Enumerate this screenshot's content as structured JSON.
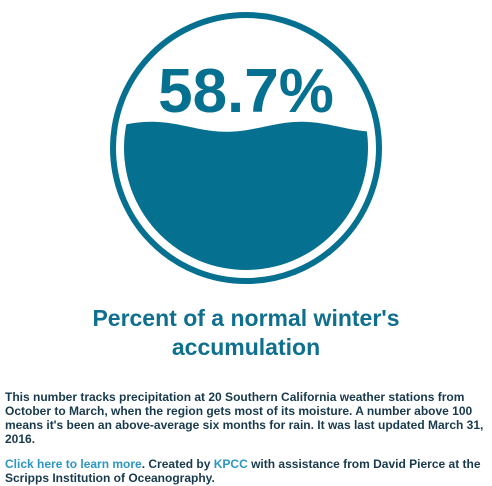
{
  "colors": {
    "accent": "#05708f",
    "link": "#2b96c4",
    "body_text": "#183a4c",
    "headline": "#0f6f8e"
  },
  "chart_data": {
    "type": "gauge",
    "value": 58.7,
    "range": [
      0,
      100
    ],
    "value_label": "58.7%"
  },
  "headline": {
    "line1": "Percent of a normal winter's",
    "line2": "accumulation"
  },
  "description": "This number tracks precipitation at 20 Southern California weather stations from October to March, when the region gets most of its moisture. A number above 100 means it's been an above-average six months for rain. It was last updated March 31, 2016.",
  "credits": {
    "learn_more_link": "Click here to learn more",
    "created_by_text": ". Created by ",
    "org_link": "KPCC",
    "assistance_text": " with assistance from David Pierce at the Scripps Institution of Oceanography."
  }
}
